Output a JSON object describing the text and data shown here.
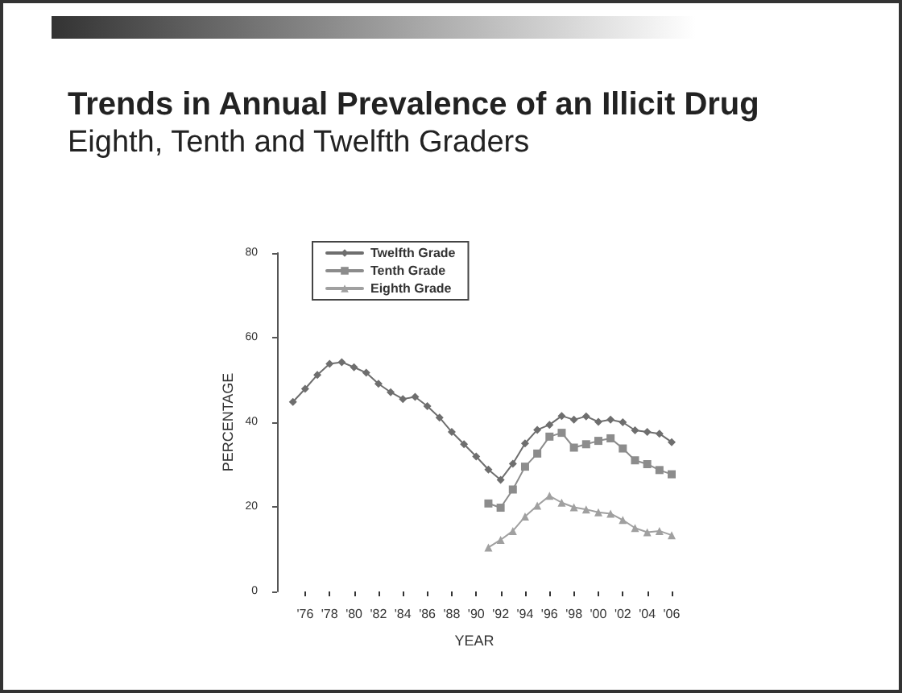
{
  "chart_data": {
    "type": "line",
    "title": "Trends in Annual Prevalence of an Illicit Drug",
    "subtitle": "Eighth, Tenth and Twelfth Graders",
    "xlabel": "YEAR",
    "ylabel": "PERCENTAGE",
    "xlim": [
      1973.7,
      2006
    ],
    "xticks": [
      {
        "value": 1976,
        "label": "'76"
      },
      {
        "value": 1978,
        "label": "'78"
      },
      {
        "value": 1980,
        "label": "'80"
      },
      {
        "value": 1982,
        "label": "'82"
      },
      {
        "value": 1984,
        "label": "'84"
      },
      {
        "value": 1986,
        "label": "'86"
      },
      {
        "value": 1988,
        "label": "'88"
      },
      {
        "value": 1990,
        "label": "'90"
      },
      {
        "value": 1992,
        "label": "'92"
      },
      {
        "value": 1994,
        "label": "'94"
      },
      {
        "value": 1996,
        "label": "'96"
      },
      {
        "value": 1998,
        "label": "'98"
      },
      {
        "value": 2000,
        "label": "'00"
      },
      {
        "value": 2002,
        "label": "'02"
      },
      {
        "value": 2004,
        "label": "'04"
      },
      {
        "value": 2006,
        "label": "'06"
      }
    ],
    "ylim": [
      0,
      80
    ],
    "yticks": [
      0,
      20,
      40,
      60,
      80
    ],
    "grid": false,
    "legend": "top left",
    "line_style": "solid",
    "series": [
      {
        "name": "Twelfth Grade",
        "color": "#6e6e6e",
        "marker": "diamond",
        "x": [
          1975,
          1976,
          1977,
          1978,
          1979,
          1980,
          1981,
          1982,
          1983,
          1984,
          1985,
          1986,
          1987,
          1988,
          1989,
          1990,
          1991,
          1992,
          1993,
          1994,
          1995,
          1996,
          1997,
          1998,
          1999,
          2000,
          2001,
          2002,
          2003,
          2004,
          2005,
          2006
        ],
        "values": [
          44.8,
          47.9,
          51.2,
          53.8,
          54.2,
          53,
          51.7,
          49.1,
          47.1,
          45.5,
          46,
          43.8,
          41.1,
          37.7,
          34.8,
          31.9,
          28.8,
          26.4,
          30.2,
          35,
          38.2,
          39.4,
          41.5,
          40.6,
          41.4,
          40.1,
          40.6,
          40,
          38.1,
          37.7,
          37.3,
          35.3
        ]
      },
      {
        "name": "Tenth Grade",
        "color": "#8c8c8c",
        "marker": "square",
        "x": [
          1991,
          1992,
          1993,
          1994,
          1995,
          1996,
          1997,
          1998,
          1999,
          2000,
          2001,
          2002,
          2003,
          2004,
          2005,
          2006
        ],
        "values": [
          20.8,
          19.8,
          24.1,
          29.5,
          32.6,
          36.6,
          37.5,
          34,
          34.8,
          35.6,
          36.2,
          33.8,
          31,
          30.1,
          28.7,
          27.7
        ]
      },
      {
        "name": "Eighth Grade",
        "color": "#a0a0a0",
        "marker": "triangle",
        "x": [
          1991,
          1992,
          1993,
          1994,
          1995,
          1996,
          1997,
          1998,
          1999,
          2000,
          2001,
          2002,
          2003,
          2004,
          2005,
          2006
        ],
        "values": [
          10.4,
          12.2,
          14.3,
          17.7,
          20.3,
          22.6,
          21,
          19.9,
          19.4,
          18.7,
          18.4,
          16.9,
          15,
          14,
          14.3,
          13.3
        ]
      }
    ]
  }
}
